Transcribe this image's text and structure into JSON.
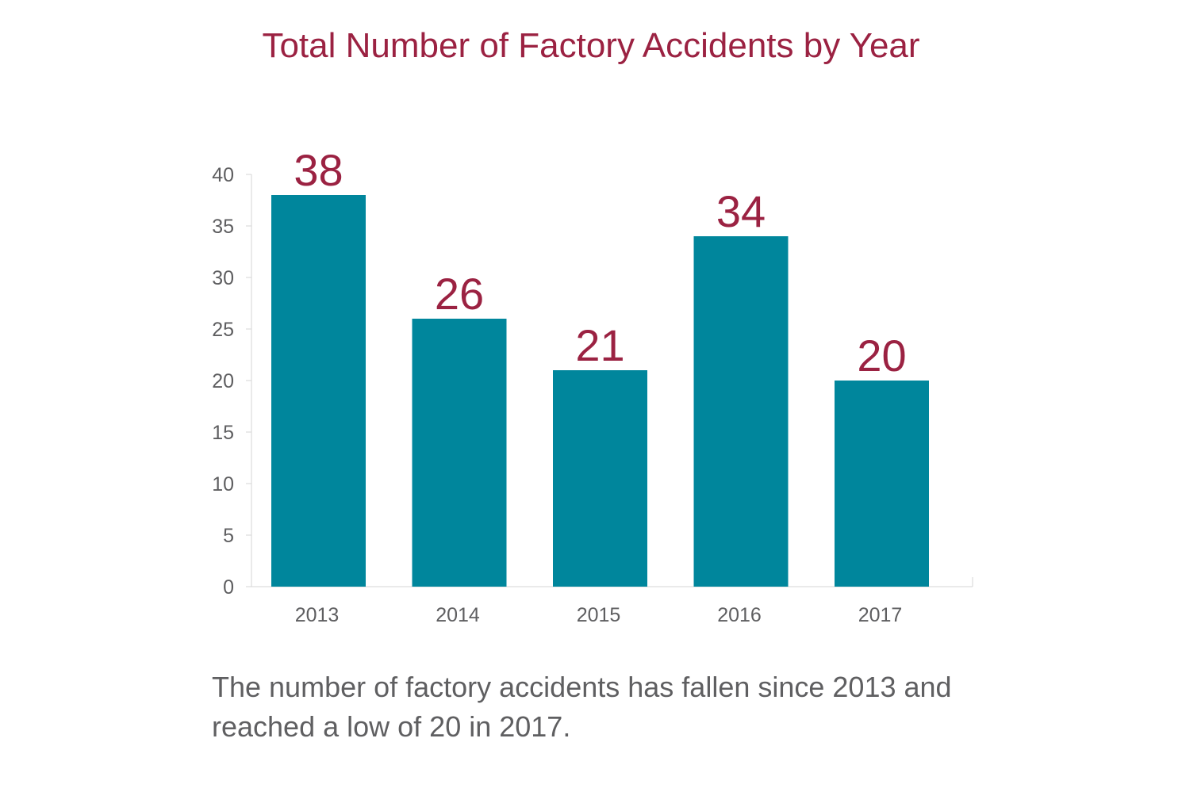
{
  "chart_data": {
    "type": "bar",
    "title": "Total Number of Factory Accidents by Year",
    "xlabel": "",
    "ylabel": "",
    "categories": [
      "2013",
      "2014",
      "2015",
      "2016",
      "2017"
    ],
    "values": [
      38,
      26,
      21,
      34,
      20
    ],
    "data_labels": [
      "38",
      "26",
      "21",
      "34",
      "20"
    ],
    "ylim": [
      0,
      40
    ],
    "yticks": [
      0,
      5,
      10,
      15,
      20,
      25,
      30,
      35,
      40
    ],
    "grid": false,
    "legend": "none",
    "colors": {
      "bar": "#00869c",
      "data_label": "#9b2242",
      "title": "#9b2242",
      "axis": "#d6d6d6",
      "tick_text": "#5e5e60"
    }
  },
  "caption": "The number of factory accidents has fallen since 2013 and reached a low of 20 in 2017."
}
